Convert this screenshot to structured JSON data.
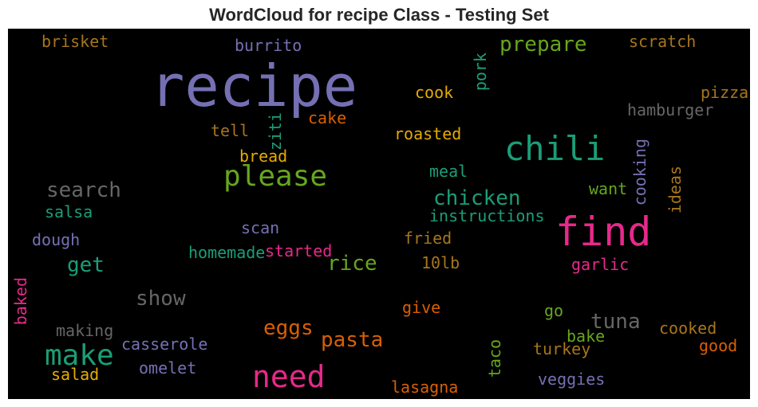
{
  "title": "WordCloud for recipe Class - Testing Set",
  "chart_data": {
    "type": "wordcloud",
    "title": "WordCloud for recipe Class - Testing Set",
    "background": "#000000",
    "colormap": "Dark2",
    "words": [
      {
        "text": "recipe",
        "weight": 1.0,
        "color": "#7570b3",
        "vertical": false
      },
      {
        "text": "find",
        "weight": 0.6,
        "color": "#e7298a",
        "vertical": false
      },
      {
        "text": "chili",
        "weight": 0.55,
        "color": "#1b9e77",
        "vertical": false
      },
      {
        "text": "need",
        "weight": 0.45,
        "color": "#e7298a",
        "vertical": false
      },
      {
        "text": "make",
        "weight": 0.45,
        "color": "#1b9e77",
        "vertical": false
      },
      {
        "text": "please",
        "weight": 0.45,
        "color": "#66a61e",
        "vertical": false
      },
      {
        "text": "search",
        "weight": 0.35,
        "color": "#666666",
        "vertical": false
      },
      {
        "text": "chicken",
        "weight": 0.35,
        "color": "#1b9e77",
        "vertical": false
      },
      {
        "text": "prepare",
        "weight": 0.35,
        "color": "#66a61e",
        "vertical": false
      },
      {
        "text": "tuna",
        "weight": 0.33,
        "color": "#666666",
        "vertical": false
      },
      {
        "text": "rice",
        "weight": 0.33,
        "color": "#66a61e",
        "vertical": false
      },
      {
        "text": "show",
        "weight": 0.33,
        "color": "#666666",
        "vertical": false
      },
      {
        "text": "eggs",
        "weight": 0.33,
        "color": "#d95f02",
        "vertical": false
      },
      {
        "text": "pasta",
        "weight": 0.33,
        "color": "#d95f02",
        "vertical": false
      },
      {
        "text": "get",
        "weight": 0.33,
        "color": "#1b9e77",
        "vertical": false
      },
      {
        "text": "hamburger",
        "weight": 0.25,
        "color": "#666666",
        "vertical": false
      },
      {
        "text": "brisket",
        "weight": 0.25,
        "color": "#a6761d",
        "vertical": false
      },
      {
        "text": "burrito",
        "weight": 0.25,
        "color": "#7570b3",
        "vertical": false
      },
      {
        "text": "scratch",
        "weight": 0.25,
        "color": "#a6761d",
        "vertical": false
      },
      {
        "text": "pizza",
        "weight": 0.25,
        "color": "#a6761d",
        "vertical": false
      },
      {
        "text": "cook",
        "weight": 0.25,
        "color": "#e6ab02",
        "vertical": false
      },
      {
        "text": "pork",
        "weight": 0.25,
        "color": "#1b9e77",
        "vertical": true
      },
      {
        "text": "tell",
        "weight": 0.25,
        "color": "#a6761d",
        "vertical": false
      },
      {
        "text": "cake",
        "weight": 0.25,
        "color": "#d95f02",
        "vertical": false
      },
      {
        "text": "ziti",
        "weight": 0.25,
        "color": "#1b9e77",
        "vertical": true
      },
      {
        "text": "roasted",
        "weight": 0.25,
        "color": "#e6ab02",
        "vertical": false
      },
      {
        "text": "bread",
        "weight": 0.25,
        "color": "#e6ab02",
        "vertical": false
      },
      {
        "text": "meal",
        "weight": 0.25,
        "color": "#1b9e77",
        "vertical": false
      },
      {
        "text": "cooking",
        "weight": 0.25,
        "color": "#7570b3",
        "vertical": true
      },
      {
        "text": "ideas",
        "weight": 0.25,
        "color": "#a6761d",
        "vertical": true
      },
      {
        "text": "want",
        "weight": 0.25,
        "color": "#66a61e",
        "vertical": false
      },
      {
        "text": "instructions",
        "weight": 0.25,
        "color": "#1b9e77",
        "vertical": false
      },
      {
        "text": "salsa",
        "weight": 0.25,
        "color": "#1b9e77",
        "vertical": false
      },
      {
        "text": "dough",
        "weight": 0.25,
        "color": "#7570b3",
        "vertical": false
      },
      {
        "text": "scan",
        "weight": 0.25,
        "color": "#7570b3",
        "vertical": false
      },
      {
        "text": "fried",
        "weight": 0.25,
        "color": "#a6761d",
        "vertical": false
      },
      {
        "text": "homemade",
        "weight": 0.25,
        "color": "#1b9e77",
        "vertical": false
      },
      {
        "text": "started",
        "weight": 0.25,
        "color": "#e7298a",
        "vertical": false
      },
      {
        "text": "10lb",
        "weight": 0.25,
        "color": "#a6761d",
        "vertical": false
      },
      {
        "text": "garlic",
        "weight": 0.25,
        "color": "#e7298a",
        "vertical": false
      },
      {
        "text": "baked",
        "weight": 0.25,
        "color": "#e7298a",
        "vertical": true
      },
      {
        "text": "give",
        "weight": 0.25,
        "color": "#d95f02",
        "vertical": false
      },
      {
        "text": "go",
        "weight": 0.25,
        "color": "#66a61e",
        "vertical": false
      },
      {
        "text": "making",
        "weight": 0.25,
        "color": "#666666",
        "vertical": false
      },
      {
        "text": "bake",
        "weight": 0.25,
        "color": "#66a61e",
        "vertical": false
      },
      {
        "text": "cooked",
        "weight": 0.25,
        "color": "#a6761d",
        "vertical": false
      },
      {
        "text": "casserole",
        "weight": 0.25,
        "color": "#7570b3",
        "vertical": false
      },
      {
        "text": "taco",
        "weight": 0.25,
        "color": "#66a61e",
        "vertical": true
      },
      {
        "text": "turkey",
        "weight": 0.25,
        "color": "#a6761d",
        "vertical": false
      },
      {
        "text": "good",
        "weight": 0.25,
        "color": "#d95f02",
        "vertical": false
      },
      {
        "text": "omelet",
        "weight": 0.25,
        "color": "#7570b3",
        "vertical": false
      },
      {
        "text": "salad",
        "weight": 0.25,
        "color": "#e6ab02",
        "vertical": false
      },
      {
        "text": "veggies",
        "weight": 0.25,
        "color": "#7570b3",
        "vertical": false
      },
      {
        "text": "lasagna",
        "weight": 0.25,
        "color": "#d95f02",
        "vertical": false
      }
    ]
  }
}
